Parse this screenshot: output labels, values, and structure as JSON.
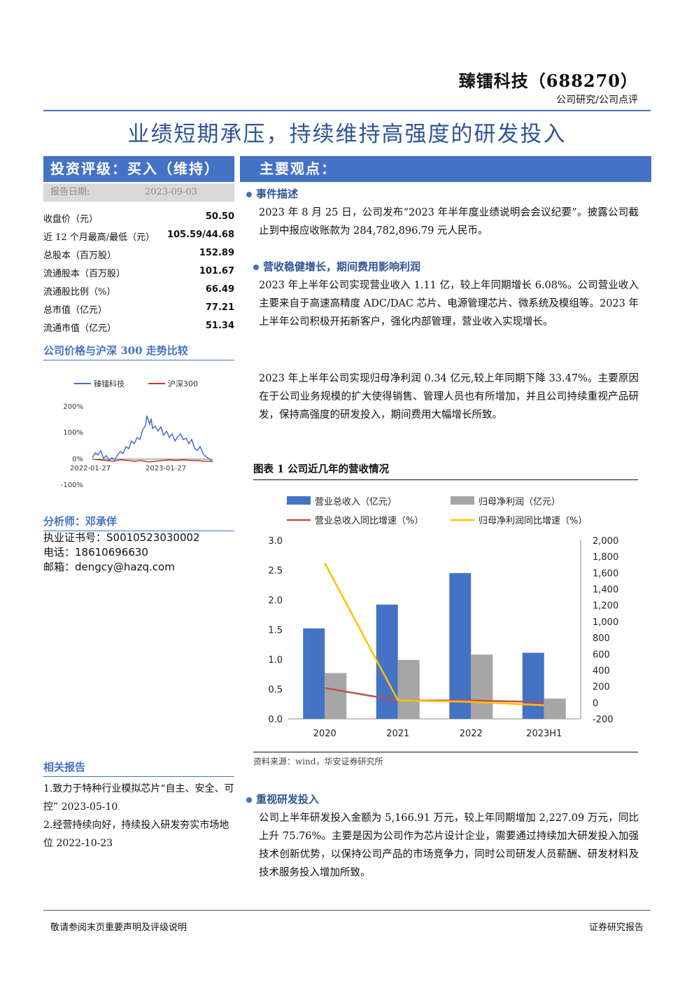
{
  "header": {
    "company": "臻镭科技（688270）",
    "category": "公司研究/公司点评",
    "title": "业绩短期承压，持续维持高强度的研发投入"
  },
  "sidebar": {
    "rating": "投资评级：买入（维持）",
    "date_label": "报告日期:",
    "date_value": "2023-09-03",
    "stats": [
      {
        "label": "收盘价（元）",
        "value": "50.50"
      },
      {
        "label": "近 12 个月最高/最低（元）",
        "value": "105.59/44.68"
      },
      {
        "label": "总股本（百万股）",
        "value": "152.89"
      },
      {
        "label": "流通股本（百万股）",
        "value": "101.67"
      },
      {
        "label": "流通股比例（%）",
        "value": "66.49"
      },
      {
        "label": "总市值（亿元）",
        "value": "77.21"
      },
      {
        "label": "流通市值（亿元）",
        "value": "51.34"
      }
    ],
    "price_compare_title": "公司价格与沪深 300 走势比较",
    "price_chart": {
      "legend": [
        "臻镭科技",
        "沪深300"
      ],
      "y_ticks": [
        "200%",
        "100%",
        "0%",
        "-100%"
      ],
      "x_ticks": [
        "2022-01-27",
        "2023-01-27"
      ],
      "colors": {
        "company": "#4472c4",
        "index": "#c0392b"
      }
    },
    "analyst_title": "分析师：邓承佯",
    "analyst_lines": [
      "执业证书号：S0010523030002",
      "电话：18610696630",
      "邮箱：dengcy@hazq.com"
    ],
    "related_title": "相关报告",
    "related": [
      "1.致力于特种行业模拟芯片“自主、安全、可控” 2023-05-10",
      "2.经营持续向好，持续投入研发夯实市场地位 2022-10-23"
    ]
  },
  "main": {
    "heading": "主要观点：",
    "sections": [
      {
        "title": "事件描述",
        "paragraphs": [
          "2023 年 8 月 25 日，公司发布“2023 年半年度业绩说明会会议纪要”。披露公司截止到中报应收账款为 284,782,896.79 元人民币。"
        ]
      },
      {
        "title": "营收稳健增长，期间费用影响利润",
        "paragraphs": [
          "2023 年上半年公司实现营业收入 1.11 亿，较上年同期增长 6.08%。公司营业收入主要来自于高速高精度 ADC/DAC 芯片、电源管理芯片、微系统及模组等。2023 年上半年公司积极开拓新客户，强化内部管理，营业收入实现增长。",
          "2023 年上半年公司实现归母净利润 0.34 亿元,较上年同期下降 33.47%。主要原因在于公司业务规模的扩大使得销售、管理人员也有所增加，并且公司持续重视产品研发，保持高强度的研发投入，期间费用大幅增长所致。"
        ]
      },
      {
        "title": "重视研发投入",
        "paragraphs": [
          "公司上半年研发投入金额为 5,166.91 万元，较上年同期增加 2,227.09 万元，同比上升 75.76%。主要是因为公司作为芯片设计企业，需要通过持续加大研发投入加强技术创新优势，以保持公司产品的市场竞争力，同时公司研发人员薪酬、研发材料及技术服务投入增加所致。"
        ]
      }
    ],
    "figure_title": "图表 1 公司近几年的营收情况",
    "figure_source": "资料来源：wind，华安证券研究所"
  },
  "chart_data": {
    "type": "bar",
    "categories": [
      "2020",
      "2021",
      "2022",
      "2023H1"
    ],
    "series": [
      {
        "name": "营业总收入（亿元）",
        "kind": "bar",
        "axis": "left",
        "color": "#4472c4",
        "values": [
          1.52,
          1.92,
          2.45,
          1.11
        ]
      },
      {
        "name": "归母净利润（亿元）",
        "kind": "bar",
        "axis": "left",
        "color": "#a6a6a6",
        "values": [
          0.77,
          0.99,
          1.08,
          0.34
        ]
      },
      {
        "name": "营业总收入同比增速（%）",
        "kind": "line",
        "axis": "right",
        "color": "#c0504d",
        "values": [
          180,
          26,
          27,
          6
        ]
      },
      {
        "name": "归母净利润同比增速（%）",
        "kind": "line",
        "axis": "right",
        "color": "#ffc000",
        "values": [
          1720,
          29,
          9,
          -33
        ]
      }
    ],
    "ylim": [
      0,
      3.0
    ],
    "y_ticks": [
      "3.0",
      "2.5",
      "2.0",
      "1.5",
      "1.0",
      "0.5",
      "0.0"
    ],
    "y2lim": [
      -200,
      2000
    ],
    "y2_ticks": [
      "2,000",
      "1,800",
      "1,600",
      "1,400",
      "1,200",
      "1,000",
      "800",
      "600",
      "400",
      "200",
      "0",
      "-200"
    ],
    "legend_position": "top"
  },
  "footer": {
    "left": "敬请参阅末页重要声明及评级说明",
    "right": "证券研究报告"
  }
}
